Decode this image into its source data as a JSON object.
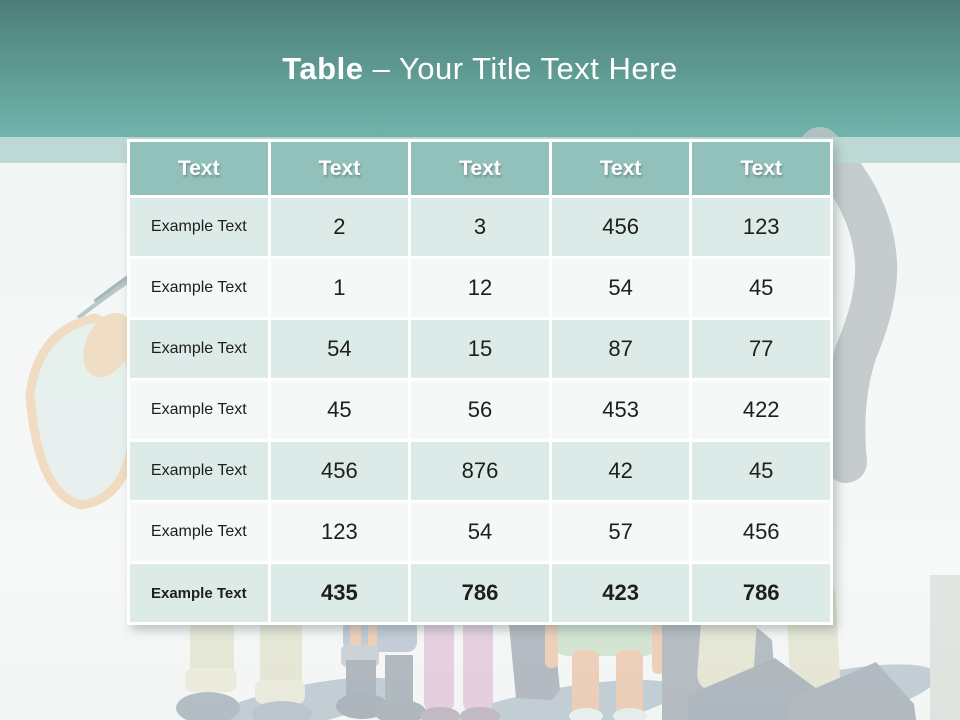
{
  "slide": {
    "title": {
      "bold": "Table",
      "rest": "– Your Title Text Here"
    },
    "colors": {
      "gradTop": "#4c7e77",
      "gradBottom": "#70b5ac",
      "band": "#bed9d5",
      "headerBg": "#92c1bb",
      "rowOdd": "#dcebe8",
      "rowEven": "#f4f8f7",
      "pageBg": "#eff4f3",
      "textDark": "#1e1e1e",
      "headerText": "#ffffff"
    }
  },
  "table": {
    "headers": [
      "Text",
      "Text",
      "Text",
      "Text",
      "Text"
    ],
    "rows": [
      {
        "label": "Example Text",
        "values": [
          "2",
          "3",
          "456",
          "123"
        ],
        "bold": false
      },
      {
        "label": "Example Text",
        "values": [
          "1",
          "12",
          "54",
          "45"
        ],
        "bold": false
      },
      {
        "label": "Example Text",
        "values": [
          "54",
          "15",
          "87",
          "77"
        ],
        "bold": false
      },
      {
        "label": "Example Text",
        "values": [
          "45",
          "56",
          "453",
          "422"
        ],
        "bold": false
      },
      {
        "label": "Example Text",
        "values": [
          "456",
          "876",
          "42",
          "45"
        ],
        "bold": false
      },
      {
        "label": "Example Text",
        "values": [
          "123",
          "54",
          "57",
          "456"
        ],
        "bold": false
      },
      {
        "label": "Example Text",
        "values": [
          "435",
          "786",
          "423",
          "786"
        ],
        "bold": true
      }
    ]
  }
}
